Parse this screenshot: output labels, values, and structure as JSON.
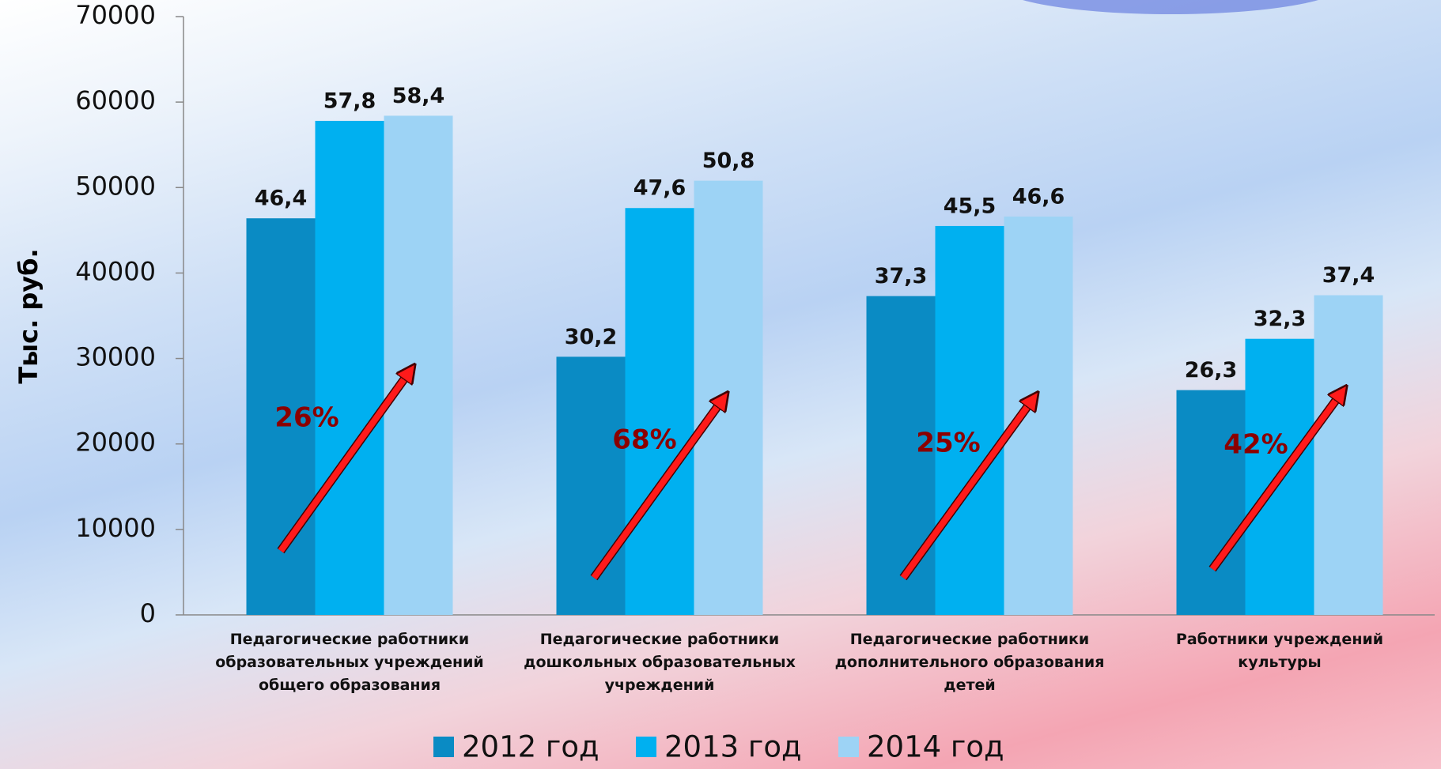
{
  "chart_data": {
    "type": "bar",
    "y_label": "Тыс. руб.",
    "categories": [
      "Педагогические работники\nобразовательных учреждений\nобщего образования",
      "Педагогические работники\nдошкольных образовательных\nучреждений",
      "Педагогические работники\nдополнительного образования\nдетей",
      "Работники учреждений\nкультуры"
    ],
    "series": [
      {
        "name": "2012 год",
        "color": "#0a8bc4",
        "values": [
          46400,
          30200,
          37300,
          26300
        ],
        "value_labels": [
          "46,4",
          "30,2",
          "37,3",
          "26,3"
        ]
      },
      {
        "name": "2013 год",
        "color": "#00b0f0",
        "values": [
          57800,
          47600,
          45500,
          32300
        ],
        "value_labels": [
          "57,8",
          "47,6",
          "45,5",
          "32,3"
        ]
      },
      {
        "name": "2014 год",
        "color": "#9dd3f5",
        "values": [
          58400,
          50800,
          46600,
          37400
        ],
        "value_labels": [
          "58,4",
          "50,8",
          "46,6",
          "37,4"
        ]
      }
    ],
    "annotations": [
      "26%",
      "68%",
      "25%",
      "42%"
    ],
    "ylim": [
      0,
      70000
    ],
    "yticks": [
      0,
      10000,
      20000,
      30000,
      40000,
      50000,
      60000,
      70000
    ]
  }
}
